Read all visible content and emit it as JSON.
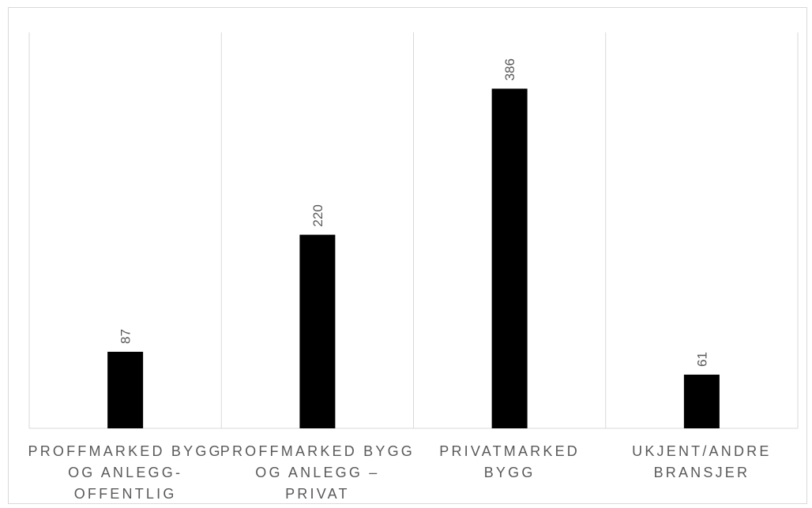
{
  "chart_data": {
    "type": "bar",
    "title": "",
    "xlabel": "",
    "ylabel": "",
    "categories": [
      [
        "PROFFMARKED BYGG",
        "OG ANLEGG-",
        "OFFENTLIG"
      ],
      [
        "PROFFMARKED BYGG",
        "OG ANLEGG –",
        "PRIVAT"
      ],
      [
        "PRIVATMARKED",
        "BYGG"
      ],
      [
        "UKJENT/ANDRE",
        "BRANSJER"
      ]
    ],
    "values": [
      87,
      220,
      386,
      61
    ],
    "ylim": [
      0,
      450
    ],
    "grid": "vertical category separators",
    "legend": "none",
    "data_labels": "rotated above bars",
    "colors": {
      "bar": "#000000",
      "gridline": "#d9d9d9",
      "text": "#595959"
    }
  }
}
